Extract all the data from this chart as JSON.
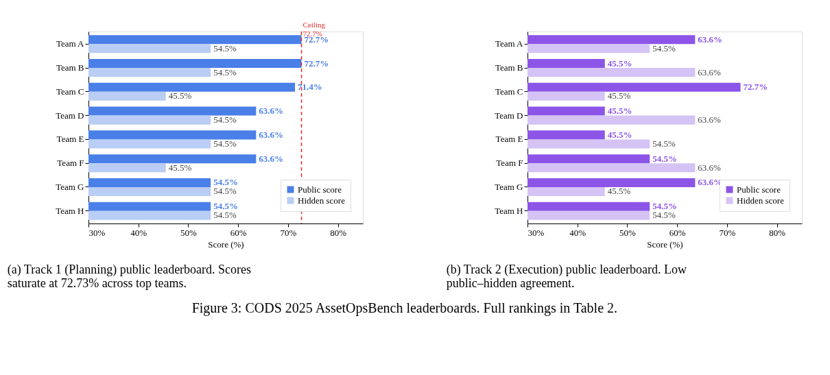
{
  "chart_data": [
    {
      "type": "bar",
      "orientation": "horizontal",
      "xlabel": "Score (%)",
      "categories": [
        "Team A",
        "Team B",
        "Team C",
        "Team D",
        "Team E",
        "Team F",
        "Team G",
        "Team H"
      ],
      "series": [
        {
          "name": "Public score",
          "color": "#4a7fe8",
          "values": [
            72.7,
            72.7,
            71.4,
            63.6,
            63.6,
            63.6,
            54.5,
            54.5
          ],
          "value_labels": [
            "72.7%",
            "72.7%",
            "71.4%",
            "63.6%",
            "63.6%",
            "63.6%",
            "54.5%",
            "54.5%"
          ]
        },
        {
          "name": "Hidden score",
          "color": "#b9cdf5",
          "values": [
            54.5,
            54.5,
            45.5,
            54.5,
            54.5,
            45.5,
            54.5,
            54.5
          ],
          "value_labels": [
            "54.5%",
            "54.5%",
            "45.5%",
            "54.5%",
            "54.5%",
            "45.5%",
            "54.5%",
            "54.5%"
          ]
        }
      ],
      "xlim": [
        30,
        85
      ],
      "xticks": [
        {
          "value": 30,
          "label": "30%"
        },
        {
          "value": 40,
          "label": "40%"
        },
        {
          "value": 50,
          "label": "50%"
        },
        {
          "value": 60,
          "label": "60%"
        },
        {
          "value": 70,
          "label": "70%"
        },
        {
          "value": 80,
          "label": "80%"
        }
      ],
      "ref_lines": [
        {
          "axis": "x",
          "value": 72.7,
          "label": "Ceiling 72.7%",
          "color": "#e8282b",
          "line_style": "dashed"
        }
      ],
      "legend": "bottom right",
      "grid": false,
      "annotations": [
        "(a) Track 1 (Planning) public leaderboard.  Scores saturate at 72.73% across top teams.",
        "Figure 3: CODS 2025 AssetOpsBench leaderboards. Full rankings in Table 2."
      ]
    },
    {
      "type": "bar",
      "orientation": "horizontal",
      "xlabel": "Score (%)",
      "categories": [
        "Team A",
        "Team B",
        "Team C",
        "Team D",
        "Team E",
        "Team F",
        "Team G",
        "Team H"
      ],
      "series": [
        {
          "name": "Public score",
          "color": "#8c55e8",
          "values": [
            63.6,
            45.5,
            72.7,
            45.5,
            45.5,
            54.5,
            63.6,
            54.5
          ],
          "value_labels": [
            "63.6%",
            "45.5%",
            "72.7%",
            "45.5%",
            "45.5%",
            "54.5%",
            "63.6%",
            "54.5%"
          ]
        },
        {
          "name": "Hidden score",
          "color": "#d5c3f5",
          "values": [
            54.5,
            63.6,
            45.5,
            63.6,
            54.5,
            63.6,
            45.5,
            54.5
          ],
          "value_labels": [
            "54.5%",
            "63.6%",
            "45.5%",
            "63.6%",
            "54.5%",
            "63.6%",
            "45.5%",
            "54.5%"
          ]
        }
      ],
      "xlim": [
        30,
        85
      ],
      "xticks": [
        {
          "value": 30,
          "label": "30%"
        },
        {
          "value": 40,
          "label": "40%"
        },
        {
          "value": 50,
          "label": "50%"
        },
        {
          "value": 60,
          "label": "60%"
        },
        {
          "value": 70,
          "label": "70%"
        },
        {
          "value": 80,
          "label": "80%"
        }
      ],
      "legend": "bottom right",
      "grid": false,
      "annotations": [
        "(b) Track 2 (Execution) public leaderboard.  Low public–hidden agreement."
      ]
    }
  ]
}
